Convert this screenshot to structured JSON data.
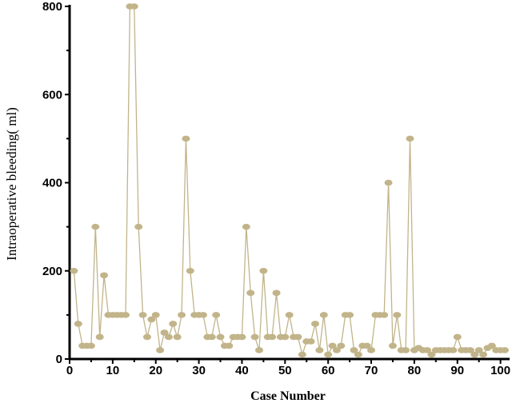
{
  "chart_data": {
    "type": "line",
    "title": "",
    "xlabel": "Case Number",
    "ylabel": "Intraoperative bleeding( ml)",
    "xlim": [
      0,
      101
    ],
    "ylim": [
      0,
      800
    ],
    "x_ticks": [
      0,
      10,
      20,
      30,
      40,
      50,
      60,
      70,
      80,
      90,
      100
    ],
    "y_ticks": [
      0,
      200,
      400,
      600,
      800
    ],
    "grid": false,
    "legend": "none",
    "colors": {
      "series": "#c2b48a",
      "axis": "#000000"
    },
    "series": [
      {
        "x": [
          1,
          2,
          3,
          4,
          5,
          6,
          7,
          8,
          9,
          10,
          11,
          12,
          13,
          14,
          15,
          16,
          17,
          18,
          19,
          20,
          21,
          22,
          23,
          24,
          25,
          26,
          27,
          28,
          29,
          30,
          31,
          32,
          33,
          34,
          35,
          36,
          37,
          38,
          39,
          40,
          41,
          42,
          43,
          44,
          45,
          46,
          47,
          48,
          49,
          50,
          51,
          52,
          53,
          54,
          55,
          56,
          57,
          58,
          59,
          60,
          61,
          62,
          63,
          64,
          65,
          66,
          67,
          68,
          69,
          70,
          71,
          72,
          73,
          74,
          75,
          76,
          77,
          78,
          79,
          80,
          81,
          82,
          83,
          84,
          85,
          86,
          87,
          88,
          89,
          90,
          91,
          92,
          93,
          94,
          95,
          96,
          97,
          98,
          99,
          100,
          101
        ],
        "values": [
          200,
          80,
          30,
          30,
          30,
          300,
          50,
          190,
          100,
          100,
          100,
          100,
          100,
          800,
          800,
          300,
          100,
          50,
          90,
          100,
          20,
          60,
          50,
          80,
          50,
          100,
          500,
          200,
          100,
          100,
          100,
          50,
          50,
          100,
          50,
          30,
          30,
          50,
          50,
          50,
          300,
          150,
          50,
          20,
          200,
          50,
          50,
          150,
          50,
          50,
          100,
          50,
          50,
          10,
          40,
          40,
          80,
          20,
          100,
          10,
          30,
          20,
          30,
          100,
          100,
          20,
          10,
          30,
          30,
          20,
          100,
          100,
          100,
          400,
          30,
          100,
          20,
          20,
          500,
          20,
          25,
          20,
          20,
          10,
          20,
          20,
          20,
          20,
          20,
          50,
          20,
          20,
          20,
          10,
          20,
          10,
          25,
          30,
          20,
          20,
          20
        ]
      }
    ]
  }
}
